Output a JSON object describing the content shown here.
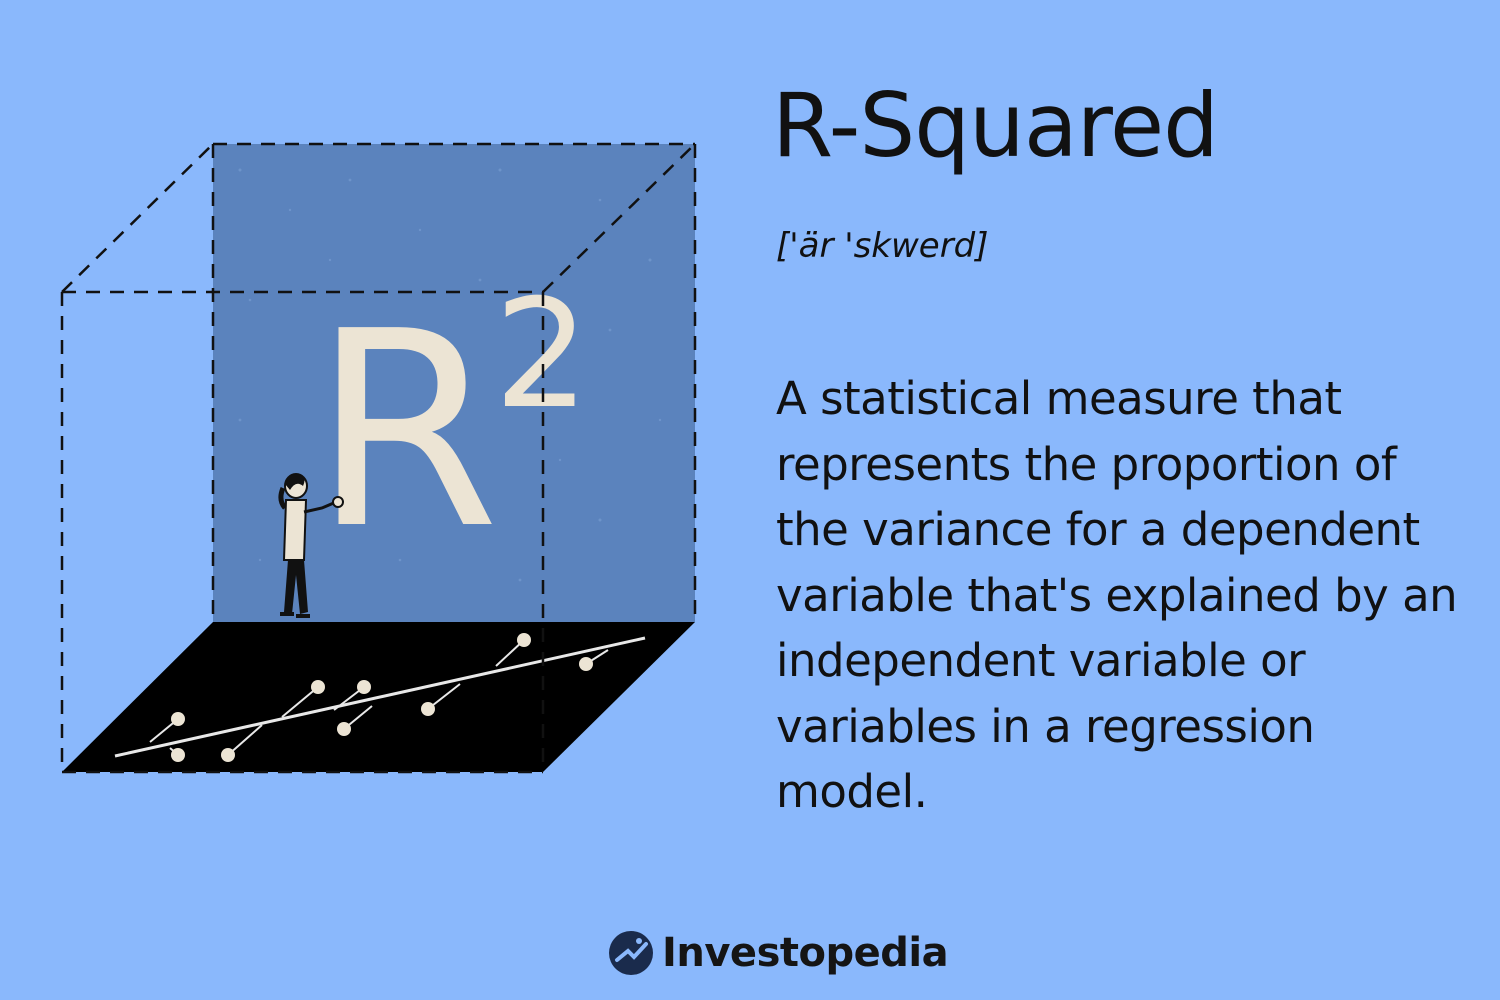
{
  "title": "R-Squared",
  "pronunciation": "['är 'skwerd]",
  "definition": "A statistical measure that represents the proportion of the variance for a dependent variable that's explained by an independent variable or variables in a regression model.",
  "illustration": {
    "symbol_letter": "R",
    "symbol_exponent": "2"
  },
  "brand": {
    "name": "Investopedia",
    "icon": "investopedia-logo-icon"
  },
  "colors": {
    "background": "#8ab8fc",
    "cube_face": "#5b83bd",
    "floor": "#000000",
    "symbol": "#ece4d4"
  }
}
